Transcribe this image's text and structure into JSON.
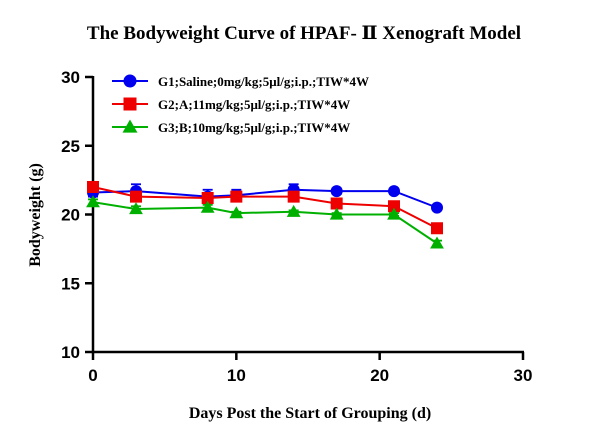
{
  "chart_data": {
    "type": "line",
    "title": "The Bodyweight Curve of HPAF- Ⅱ Xenograft Model",
    "xlabel": "Days Post the Start of Grouping (d)",
    "ylabel": "Bodyweight (g)",
    "xlim": [
      0,
      30
    ],
    "ylim": [
      10,
      30
    ],
    "xticks": [
      0,
      10,
      20,
      30
    ],
    "yticks": [
      10,
      15,
      20,
      25,
      30
    ],
    "xtick_labels": [
      "0",
      "10",
      "20",
      "30"
    ],
    "ytick_labels": [
      "10",
      "15",
      "20",
      "25",
      "30"
    ],
    "grid": false,
    "legend_position": "top-left",
    "x": [
      0,
      3,
      8,
      10,
      14,
      17,
      21,
      24
    ],
    "series": [
      {
        "name": "G1;Saline;0mg/kg;5μl/g;i.p.;TIW*4W",
        "marker": "circle",
        "color": "#0000ee",
        "values": [
          21.6,
          21.7,
          21.3,
          21.4,
          21.8,
          21.7,
          21.7,
          20.5
        ],
        "errors": [
          0.3,
          0.5,
          0.5,
          0.4,
          0.4,
          0.2,
          0.2,
          0.1
        ]
      },
      {
        "name": "G2;A;11mg/kg;5μl/g;i.p.;TIW*4W",
        "marker": "square",
        "color": "#ee0000",
        "values": [
          22.0,
          21.3,
          21.2,
          21.3,
          21.3,
          20.8,
          20.6,
          19.0
        ],
        "errors": [
          0.3,
          0.2,
          0.2,
          0.2,
          0.2,
          0.2,
          0.2,
          0.2
        ]
      },
      {
        "name": "G3;B;10mg/kg;5μl/g;i.p.;TIW*4W",
        "marker": "triangle",
        "color": "#00b000",
        "values": [
          20.9,
          20.4,
          20.5,
          20.1,
          20.2,
          20.0,
          20.0,
          17.9
        ],
        "errors": [
          0.2,
          0.2,
          0.2,
          0.1,
          0.1,
          0.1,
          0.1,
          0.2
        ]
      }
    ]
  }
}
